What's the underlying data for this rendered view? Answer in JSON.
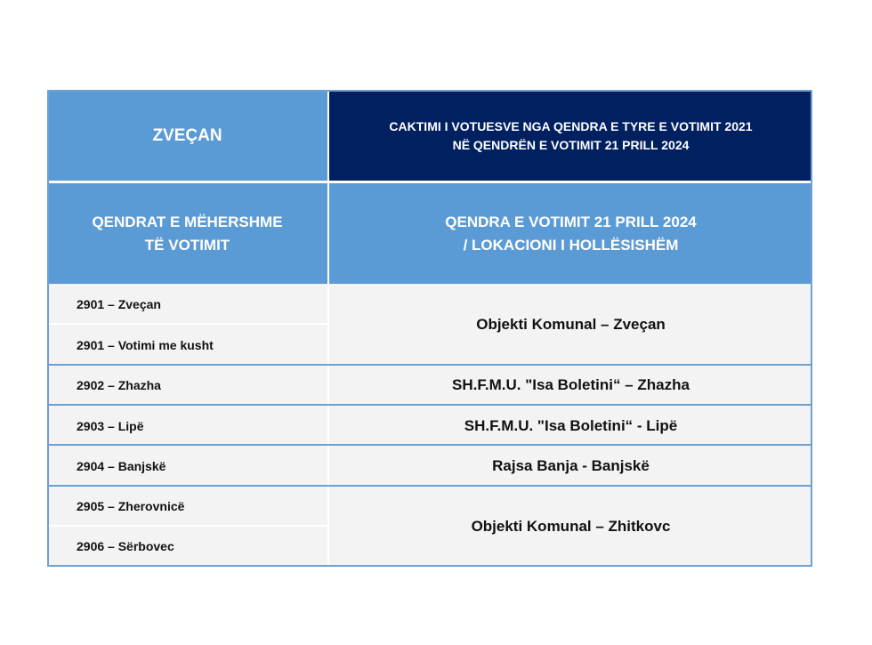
{
  "header": {
    "municipality": "ZVEÇAN",
    "title_line1": "CAKTIMI I VOTUESVE NGA QENDRA E TYRE E VOTIMIT 2021",
    "title_line2": "NË QENDRËN E VOTIMIT 21 PRILL 2024"
  },
  "columns": {
    "left_line1": "QENDRAT E MËHERSHME",
    "left_line2": "TË VOTIMIT",
    "right_line1": "QENDRA E VOTIMIT 21 PRILL 2024",
    "right_line2": "/ LOKACIONI I HOLLËSISHËM"
  },
  "old_centers": [
    "2901 – Zveçan",
    "2901 – Votimi me kusht",
    "2902 – Zhazha",
    "2903 – Lipë",
    "2904 – Banjskë",
    "2905 – Zherovnicë",
    "2906 – Sërbovec"
  ],
  "new_locations": [
    "Objekti Komunal – Zveçan",
    "SH.F.M.U. \"Isa Boletini“ – Zhazha",
    "SH.F.M.U. \"Isa Boletini“ - Lipë",
    "Rajsa Banja - Banjskë",
    "Objekti Komunal – Zhitkovc"
  ]
}
